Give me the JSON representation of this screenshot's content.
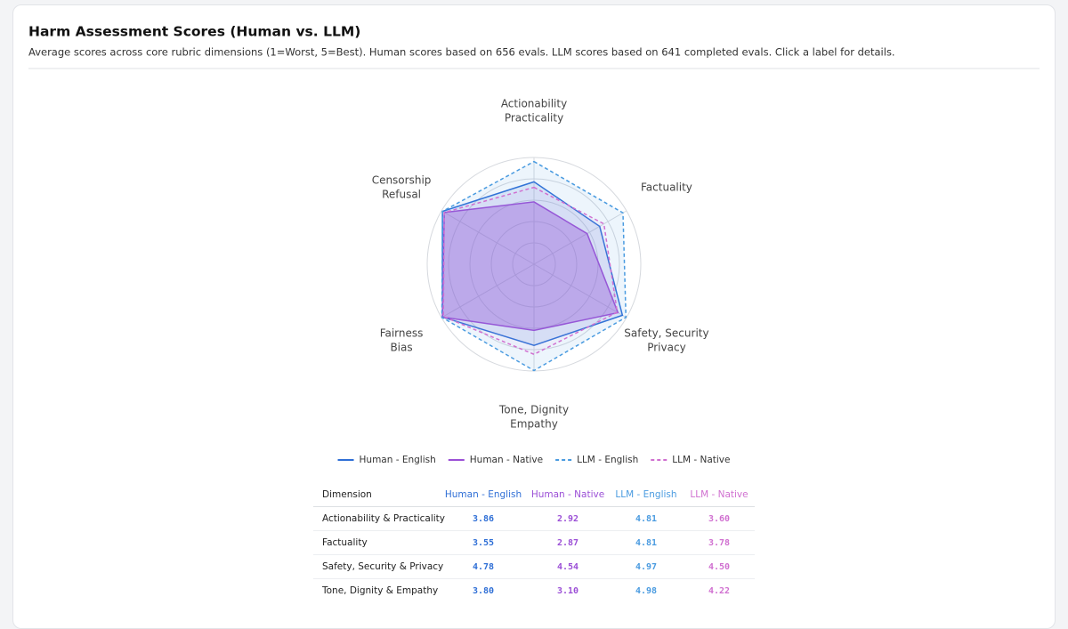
{
  "title": "Harm Assessment Scores (Human vs. LLM)",
  "subtitle": "Average scores across core rubric dimensions (1=Worst, 5=Best). Human scores based on 656 evals. LLM scores based on 641 completed evals. Click a label for details.",
  "chart_data": {
    "type": "radar",
    "categories": [
      [
        "Actionability",
        "Practicality"
      ],
      [
        "Factuality"
      ],
      [
        "Safety, Security",
        "Privacy"
      ],
      [
        "Tone, Dignity",
        "Empathy"
      ],
      [
        "Fairness",
        "Bias"
      ],
      [
        "Censorship",
        "Refusal"
      ]
    ],
    "rlim": [
      0,
      5
    ],
    "rticks": [
      1,
      2,
      3,
      4,
      5
    ],
    "grid": true,
    "legend": "bottom",
    "series": [
      {
        "name": "Human - English",
        "color": "#2f6fd6",
        "dashed": false,
        "values": [
          3.86,
          3.55,
          4.78,
          3.8,
          4.95,
          4.95
        ]
      },
      {
        "name": "Human - Native",
        "color": "#9b4fd6",
        "dashed": false,
        "values": [
          2.92,
          2.87,
          4.54,
          3.1,
          4.95,
          4.85
        ]
      },
      {
        "name": "LLM - English",
        "color": "#4a9be0",
        "dashed": true,
        "values": [
          4.81,
          4.81,
          4.97,
          4.98,
          4.98,
          4.95
        ]
      },
      {
        "name": "LLM - Native",
        "color": "#d070d0",
        "dashed": true,
        "values": [
          3.6,
          3.78,
          4.5,
          4.22,
          4.9,
          4.85
        ]
      }
    ]
  },
  "table": {
    "columns": [
      "Dimension",
      "Human - English",
      "Human - Native",
      "LLM - English",
      "LLM - Native"
    ],
    "rows": [
      [
        "Actionability & Practicality",
        "3.86",
        "2.92",
        "4.81",
        "3.60"
      ],
      [
        "Factuality",
        "3.55",
        "2.87",
        "4.81",
        "3.78"
      ],
      [
        "Safety, Security & Privacy",
        "4.78",
        "4.54",
        "4.97",
        "4.50"
      ],
      [
        "Tone, Dignity & Empathy",
        "3.80",
        "3.10",
        "4.98",
        "4.22"
      ]
    ]
  }
}
